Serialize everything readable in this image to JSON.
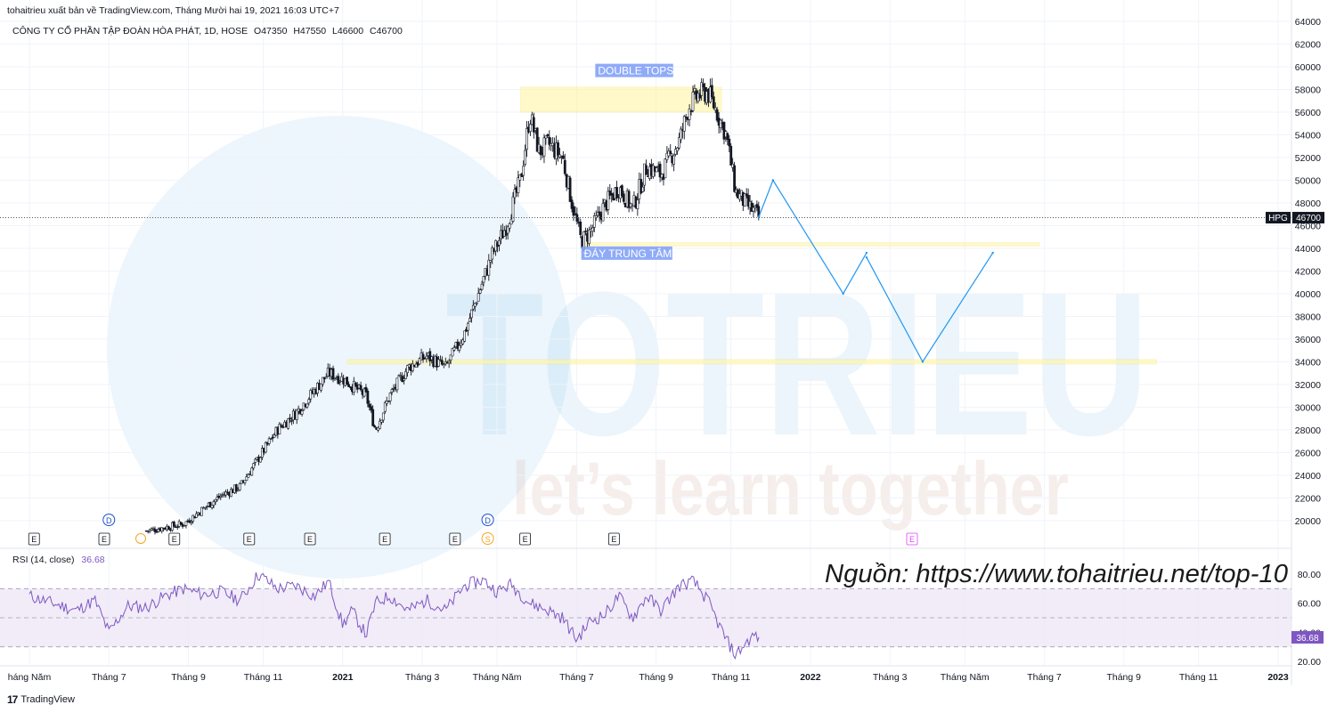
{
  "header": {
    "published_line": "tohaitrieu xuất bản về TradingView.com, Tháng Mười hai 19, 2021 16:03 UTC+7",
    "symbol_line": "CÔNG TY CỔ PHẦN TẬP ĐOÀN HÒA PHÁT, 1D, HOSE",
    "ohlc": {
      "open": "O47350",
      "high": "H47550",
      "low": "L46600",
      "close": "C46700"
    }
  },
  "watermark": {
    "brand": "TOTRIEU",
    "slogan": "let’s learn together"
  },
  "source_note": "Nguồn: https://www.tohaitrieu.net/top-10",
  "footer": {
    "logo_mark": "17",
    "logo_text": "TradingView"
  },
  "colors": {
    "price_line": "#131722",
    "rsi_line": "#7e57c2",
    "rsi_band": "#ede7f6",
    "projection": "#2196f3",
    "zone": "#fff59d",
    "label_bg": "#7b9cf7"
  },
  "chart_data": {
    "type": "candlestick",
    "symbol": "HPG",
    "last_price": 46700,
    "y_ticks": [
      20000,
      22000,
      24000,
      26000,
      28000,
      30000,
      32000,
      34000,
      36000,
      38000,
      40000,
      42000,
      44000,
      46000,
      48000,
      50000,
      52000,
      54000,
      56000,
      58000,
      60000,
      62000,
      64000
    ],
    "x_ticks": [
      "háng Năm",
      "Tháng 7",
      "Tháng 9",
      "Tháng 11",
      "2021",
      "Tháng 3",
      "Tháng Năm",
      "Tháng 7",
      "Tháng 9",
      "Tháng 11",
      "2022",
      "Tháng 3",
      "Tháng Năm",
      "Tháng 7",
      "Tháng 9",
      "Tháng 11",
      "2023"
    ],
    "x_tick_years": [
      2020.33,
      2020.5,
      2020.67,
      2020.83,
      2021.0,
      2021.17,
      2021.33,
      2021.5,
      2021.67,
      2021.83,
      2022.0,
      2022.17,
      2022.33,
      2022.5,
      2022.67,
      2022.83,
      2023.0
    ],
    "price_path": [
      [
        2020.58,
        19100
      ],
      [
        2020.66,
        19700
      ],
      [
        2020.7,
        21000
      ],
      [
        2020.74,
        22200
      ],
      [
        2020.78,
        23000
      ],
      [
        2020.82,
        25500
      ],
      [
        2020.86,
        28000
      ],
      [
        2020.9,
        29500
      ],
      [
        2020.94,
        31500
      ],
      [
        2020.97,
        33000
      ],
      [
        2021.0,
        32500
      ],
      [
        2021.05,
        31000
      ],
      [
        2021.07,
        28000
      ],
      [
        2021.1,
        31000
      ],
      [
        2021.14,
        33500
      ],
      [
        2021.18,
        34500
      ],
      [
        2021.22,
        33500
      ],
      [
        2021.26,
        36500
      ],
      [
        2021.29,
        40000
      ],
      [
        2021.32,
        43500
      ],
      [
        2021.35,
        46000
      ],
      [
        2021.38,
        50000
      ],
      [
        2021.4,
        55800
      ],
      [
        2021.42,
        52500
      ],
      [
        2021.44,
        53200
      ],
      [
        2021.47,
        52000
      ],
      [
        2021.49,
        48000
      ],
      [
        2021.51,
        44600
      ],
      [
        2021.53,
        45500
      ],
      [
        2021.56,
        47800
      ],
      [
        2021.59,
        49400
      ],
      [
        2021.62,
        47500
      ],
      [
        2021.65,
        51200
      ],
      [
        2021.68,
        50500
      ],
      [
        2021.72,
        53500
      ],
      [
        2021.74,
        56500
      ],
      [
        2021.76,
        57500
      ],
      [
        2021.78,
        57800
      ],
      [
        2021.8,
        56000
      ],
      [
        2021.82,
        54000
      ],
      [
        2021.84,
        49000
      ],
      [
        2021.86,
        48000
      ],
      [
        2021.88,
        47200
      ],
      [
        2021.89,
        46700
      ]
    ],
    "annotations": [
      {
        "text": "DOUBLE TOPS",
        "x": 2021.54,
        "y": 59400
      },
      {
        "text": "ĐÁY TRUNG TÂM",
        "x": 2021.51,
        "y": 43300
      }
    ],
    "zones": [
      {
        "x0": 2021.38,
        "x1": 2021.81,
        "y0": 56000,
        "y1": 58200
      },
      {
        "x0": 2021.52,
        "x1": 2022.49,
        "y0": 44200,
        "y1": 44500
      },
      {
        "x0": 2021.01,
        "x1": 2022.74,
        "y0": 33800,
        "y1": 34200
      }
    ],
    "projection": [
      [
        2021.89,
        46800
      ],
      [
        2021.92,
        50000
      ],
      [
        2022.07,
        40000
      ],
      [
        2022.12,
        43600
      ],
      [
        2022.12,
        43200
      ],
      [
        2022.24,
        34000
      ],
      [
        2022.39,
        43600
      ]
    ],
    "event_markers": [
      {
        "label": "E",
        "x": 2020.34
      },
      {
        "label": "E",
        "x": 2020.49
      },
      {
        "label": "E",
        "x": 2020.64
      },
      {
        "label": "E",
        "x": 2020.8
      },
      {
        "label": "E",
        "x": 2020.93
      },
      {
        "label": "E",
        "x": 2021.09
      },
      {
        "label": "E",
        "x": 2021.24
      },
      {
        "label": "E",
        "x": 2021.39
      },
      {
        "label": "E",
        "x": 2021.58
      }
    ],
    "dividend_markers": [
      {
        "label": "D",
        "x": 2020.5
      },
      {
        "label": "D",
        "x": 2021.31
      }
    ],
    "split_markers": [
      {
        "label": "S",
        "x": 2021.31
      }
    ],
    "rsi": {
      "label": "RSI (14, close)",
      "value": "36.68",
      "y_ticks": [
        "80.00",
        "60.00",
        "40.00",
        "20.00"
      ],
      "upper": 70,
      "mid": 50,
      "lower": 30,
      "series": [
        [
          2020.33,
          65
        ],
        [
          2020.38,
          60
        ],
        [
          2020.43,
          55
        ],
        [
          2020.47,
          62
        ],
        [
          2020.5,
          40
        ],
        [
          2020.54,
          58
        ],
        [
          2020.58,
          57
        ],
        [
          2020.62,
          65
        ],
        [
          2020.66,
          70
        ],
        [
          2020.7,
          66
        ],
        [
          2020.74,
          68
        ],
        [
          2020.78,
          62
        ],
        [
          2020.82,
          80
        ],
        [
          2020.86,
          70
        ],
        [
          2020.9,
          72
        ],
        [
          2020.94,
          65
        ],
        [
          2020.97,
          75
        ],
        [
          2021.0,
          45
        ],
        [
          2021.02,
          55
        ],
        [
          2021.05,
          38
        ],
        [
          2021.07,
          60
        ],
        [
          2021.1,
          65
        ],
        [
          2021.14,
          55
        ],
        [
          2021.18,
          62
        ],
        [
          2021.22,
          55
        ],
        [
          2021.26,
          72
        ],
        [
          2021.3,
          76
        ],
        [
          2021.33,
          68
        ],
        [
          2021.36,
          73
        ],
        [
          2021.4,
          60
        ],
        [
          2021.44,
          55
        ],
        [
          2021.47,
          50
        ],
        [
          2021.5,
          35
        ],
        [
          2021.53,
          48
        ],
        [
          2021.56,
          52
        ],
        [
          2021.59,
          65
        ],
        [
          2021.62,
          50
        ],
        [
          2021.65,
          65
        ],
        [
          2021.68,
          55
        ],
        [
          2021.72,
          72
        ],
        [
          2021.75,
          75
        ],
        [
          2021.78,
          62
        ],
        [
          2021.8,
          48
        ],
        [
          2021.82,
          35
        ],
        [
          2021.84,
          24
        ],
        [
          2021.86,
          32
        ],
        [
          2021.88,
          38
        ],
        [
          2021.89,
          36.68
        ]
      ]
    }
  }
}
